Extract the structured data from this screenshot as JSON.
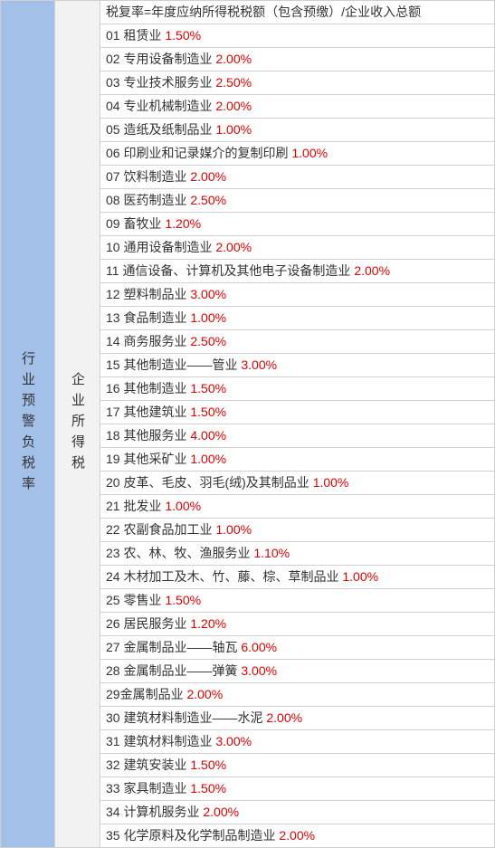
{
  "leftLabel": "行业预警负税率",
  "midLabel": "企业所得税",
  "headerText": "税复率=年度应纳所得税税额（包含预缴）/企业收入总额",
  "rows": [
    {
      "num": "01",
      "name": "租赁业",
      "rate": "1.50%"
    },
    {
      "num": "02",
      "name": "专用设备制造业",
      "rate": "2.00%"
    },
    {
      "num": "03",
      "name": "专业技术服务业",
      "rate": "2.50%"
    },
    {
      "num": "04",
      "name": "专业机械制造业",
      "rate": "2.00%"
    },
    {
      "num": "05",
      "name": "造纸及纸制品业",
      "rate": "1.00%"
    },
    {
      "num": "06",
      "name": "印刷业和记录媒介的复制印刷",
      "rate": "1.00%"
    },
    {
      "num": "07",
      "name": "饮料制造业",
      "rate": "2.00%"
    },
    {
      "num": "08",
      "name": "医药制造业",
      "rate": "2.50%"
    },
    {
      "num": "09",
      "name": "畜牧业",
      "rate": "1.20%"
    },
    {
      "num": "10",
      "name": "通用设备制造业",
      "rate": "2.00%"
    },
    {
      "num": "11",
      "name": "通信设备、计算机及其他电子设备制造业",
      "rate": "2.00%"
    },
    {
      "num": "12",
      "name": "塑料制品业",
      "rate": "3.00%"
    },
    {
      "num": "13",
      "name": "食品制造业",
      "rate": "1.00%"
    },
    {
      "num": "14",
      "name": "商务服务业",
      "rate": "2.50%"
    },
    {
      "num": "15",
      "name": "其他制造业——管业",
      "rate": "3.00%"
    },
    {
      "num": "16",
      "name": "其他制造业",
      "rate": "1.50%"
    },
    {
      "num": "17",
      "name": "其他建筑业",
      "rate": "1.50%"
    },
    {
      "num": "18",
      "name": "其他服务业",
      "rate": "4.00%"
    },
    {
      "num": "19",
      "name": "其他采矿业",
      "rate": "1.00%"
    },
    {
      "num": "20",
      "name": "皮革、毛皮、羽毛(绒)及其制品业",
      "rate": "1.00%"
    },
    {
      "num": "21",
      "name": "批发业",
      "rate": "1.00%"
    },
    {
      "num": "22",
      "name": "农副食品加工业",
      "rate": "1.00%"
    },
    {
      "num": "23",
      "name": "农、林、牧、渔服务业",
      "rate": "1.10%"
    },
    {
      "num": "24",
      "name": "木材加工及木、竹、藤、棕、草制品业",
      "rate": "1.00%"
    },
    {
      "num": "25",
      "name": "零售业",
      "rate": "1.50%"
    },
    {
      "num": "26",
      "name": "居民服务业",
      "rate": "1.20%"
    },
    {
      "num": "27",
      "name": "金属制品业——轴瓦",
      "rate": "6.00%"
    },
    {
      "num": "28",
      "name": "金属制品业——弹簧",
      "rate": "3.00%"
    },
    {
      "num": "29",
      "name": "金属制品业",
      "rate": "2.00%",
      "nospace": true
    },
    {
      "num": "30",
      "name": "建筑材料制造业——水泥",
      "rate": "2.00%"
    },
    {
      "num": "31",
      "name": "建筑材料制造业",
      "rate": "3.00%"
    },
    {
      "num": "32",
      "name": "建筑安装业",
      "rate": "1.50%"
    },
    {
      "num": "33",
      "name": "家具制造业",
      "rate": "1.50%"
    },
    {
      "num": "34",
      "name": "计算机服务业",
      "rate": "2.00%"
    },
    {
      "num": "35",
      "name": "化学原料及化学制品制造业",
      "rate": "2.00%"
    }
  ],
  "colors": {
    "leftBg": "#a3c1e8",
    "midBg": "#f2f2f2",
    "rateColor": "#e60000",
    "borderColor": "#d0d0d0"
  }
}
